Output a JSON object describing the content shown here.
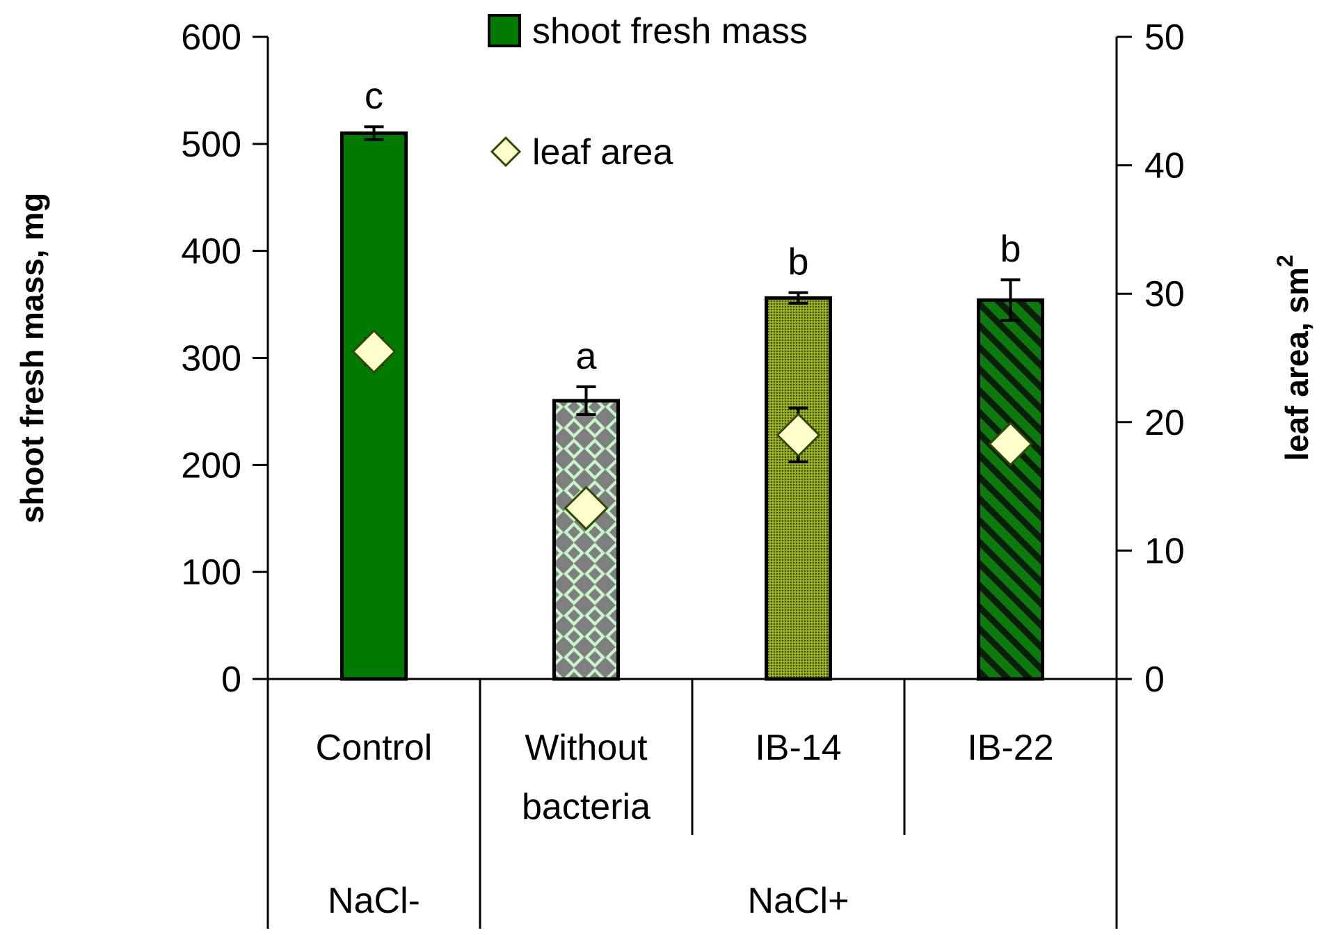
{
  "chart_data": {
    "type": "bar",
    "title": "",
    "categories": [
      "Control",
      "Without bacteria",
      "IB-14",
      "IB-22"
    ],
    "category_lines": [
      [
        "Control"
      ],
      [
        "Without",
        "bacteria"
      ],
      [
        "IB-14"
      ],
      [
        "IB-22"
      ]
    ],
    "groups": [
      {
        "label": "NaCl-",
        "categories": [
          "Control"
        ]
      },
      {
        "label": "NaCl+",
        "categories": [
          "Without bacteria",
          "IB-14",
          "IB-22"
        ]
      }
    ],
    "series": [
      {
        "name": "shoot fresh mass",
        "kind": "bar",
        "axis": "left",
        "values": [
          510,
          260,
          356,
          354
        ],
        "errors": [
          6,
          13,
          5,
          19
        ],
        "significance": [
          "c",
          "a",
          "b",
          "b"
        ],
        "colors": [
          "#007a00",
          "#c8f5c8",
          "#7f9a10",
          "#0c7a0c"
        ],
        "patterns": [
          "solid",
          "diamond-checker",
          "stipple",
          "diagonal-stripes"
        ]
      },
      {
        "name": "leaf area",
        "kind": "marker",
        "marker": "diamond",
        "axis": "right",
        "values": [
          25.5,
          13.3,
          19.0,
          18.3
        ],
        "errors": [
          1.0,
          0.5,
          2.1,
          0.3
        ],
        "color": "#ffffcc"
      }
    ],
    "y_left": {
      "label": "shoot fresh mass, mg",
      "lim": [
        0,
        600
      ],
      "ticks": [
        0,
        100,
        200,
        300,
        400,
        500,
        600
      ]
    },
    "y_right": {
      "label": "leaf area, sm",
      "superscript": "2",
      "lim": [
        0,
        50
      ],
      "ticks": [
        0,
        10,
        20,
        30,
        40,
        50
      ]
    },
    "legend": {
      "placement": "top-center",
      "entries": [
        "shoot fresh mass",
        "leaf area"
      ]
    },
    "grid": false
  }
}
